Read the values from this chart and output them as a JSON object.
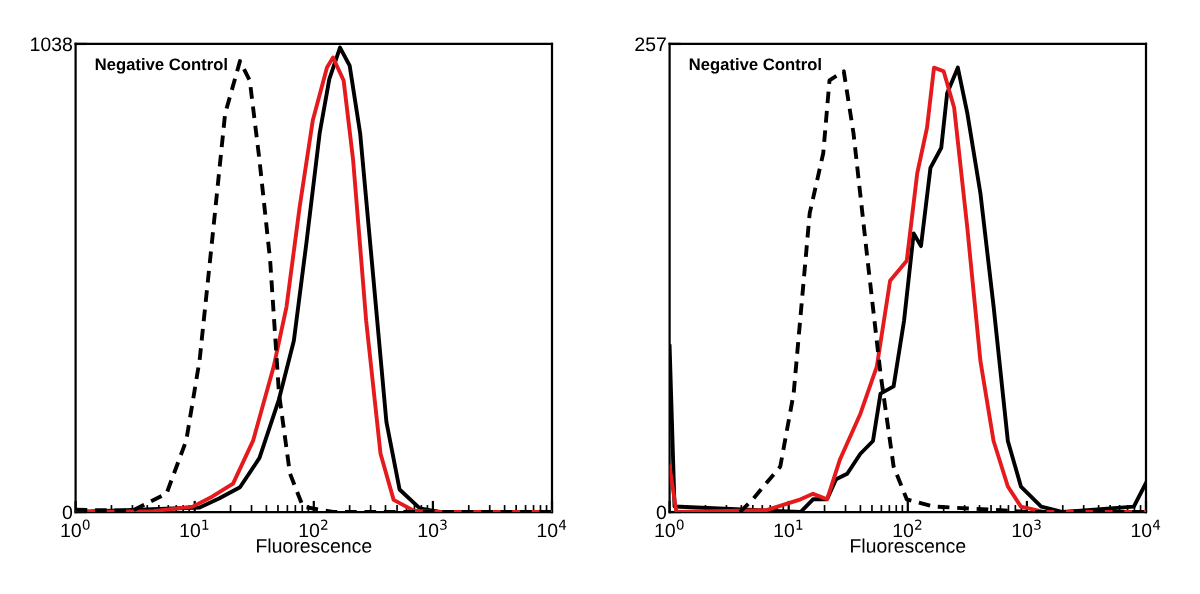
{
  "chart_data": [
    {
      "type": "line",
      "xlabel": "Fluorescence",
      "annotations": [
        "Negative Control"
      ],
      "log": "x",
      "grid": false,
      "legend": false,
      "xlim": [
        1,
        10000
      ],
      "ylim": [
        0,
        1038
      ],
      "xticks": [
        {
          "value": 1,
          "label": "10$^{0}$"
        },
        {
          "value": 10,
          "label": "10$^{1}$"
        },
        {
          "value": 100,
          "label": "10$^{2}$"
        },
        {
          "value": 1000,
          "label": "10$^{3}$"
        },
        {
          "value": 10000,
          "label": "10$^{4}$"
        }
      ],
      "yticks": [
        0,
        1038
      ],
      "series": [
        {
          "color": "#000000",
          "line_style": "dashed",
          "x": [
            1,
            3,
            5.8,
            8.5,
            11,
            14,
            18,
            24,
            29,
            35,
            43,
            51,
            63,
            81,
            145,
            1000,
            10000
          ],
          "values": [
            5,
            3,
            41,
            159,
            337,
            602,
            883,
            1000,
            957,
            780,
            558,
            263,
            86,
            12,
            0,
            0,
            0
          ]
        },
        {
          "color": "#e41a1c",
          "line_style": "solid",
          "x": [
            1,
            4.5,
            9.6,
            14,
            21,
            31,
            46,
            59,
            76,
            98,
            129,
            145,
            178,
            214,
            275,
            363,
            468,
            692,
            1000,
            10000
          ],
          "values": [
            0,
            2,
            12,
            34,
            63,
            159,
            322,
            455,
            676,
            868,
            986,
            1008,
            957,
            780,
            425,
            130,
            27,
            3,
            0,
            0
          ]
        },
        {
          "color": "#000000",
          "line_style": "solid",
          "x": [
            1,
            11,
            16,
            24,
            35,
            51,
            68,
            87,
            112,
            135,
            166,
            200,
            245,
            316,
            407,
            525,
            776,
            1148,
            10000
          ],
          "values": [
            0,
            10,
            30,
            55,
            120,
            250,
            380,
            600,
            840,
            960,
            1030,
            990,
            840,
            520,
            200,
            50,
            8,
            0,
            0
          ]
        }
      ]
    },
    {
      "type": "line",
      "xlabel": "Fluorescence",
      "annotations": [
        "Negative Control"
      ],
      "log": "x",
      "grid": false,
      "legend": false,
      "xlim": [
        1,
        10000
      ],
      "ylim": [
        0,
        257
      ],
      "xticks": [
        {
          "value": 1,
          "label": "10$^{0}$"
        },
        {
          "value": 10,
          "label": "10$^{1}$"
        },
        {
          "value": 100,
          "label": "10$^{2}$"
        },
        {
          "value": 1000,
          "label": "10$^{3}$"
        },
        {
          "value": 10000,
          "label": "10$^{4}$"
        }
      ],
      "yticks": [
        0,
        257
      ],
      "series": [
        {
          "color": "#000000",
          "line_style": "dashed",
          "x": [
            3.9,
            5,
            8.5,
            11,
            15,
            19.5,
            22,
            29,
            35,
            46,
            59,
            76,
            98,
            166,
            603,
            1000,
            10000
          ],
          "values": [
            0,
            7,
            25,
            65,
            164,
            197,
            237,
            242,
            208,
            138,
            76,
            25,
            7,
            3,
            1,
            0,
            0
          ]
        },
        {
          "color": "#e41a1c",
          "line_style": "solid",
          "x": [
            1,
            1.14,
            6.5,
            12.6,
            16,
            21,
            27,
            40,
            55,
            71,
            98,
            120,
            145,
            166,
            200,
            245,
            316,
            407,
            525,
            692,
            891,
            1400,
            10000
          ],
          "values": [
            25,
            0,
            1,
            7,
            10,
            7,
            29,
            54,
            80,
            127,
            138,
            186,
            211,
            244,
            242,
            222,
            156,
            83,
            39,
            14,
            3,
            0,
            0
          ]
        },
        {
          "color": "#000000",
          "line_style": "solid",
          "x": [
            1,
            1.1,
            12.6,
            16,
            21,
            25,
            31,
            40,
            51,
            59,
            76,
            93,
            112,
            129,
            155,
            191,
            214,
            263,
            316,
            407,
            525,
            692,
            891,
            1318,
            2000,
            7900,
            10000
          ],
          "values": [
            91,
            3,
            0,
            7,
            7,
            18,
            21,
            32,
            39,
            65,
            69,
            105,
            153,
            146,
            189,
            200,
            230,
            244,
            219,
            175,
            113,
            39,
            14,
            3,
            0,
            3,
            16
          ]
        }
      ]
    }
  ]
}
